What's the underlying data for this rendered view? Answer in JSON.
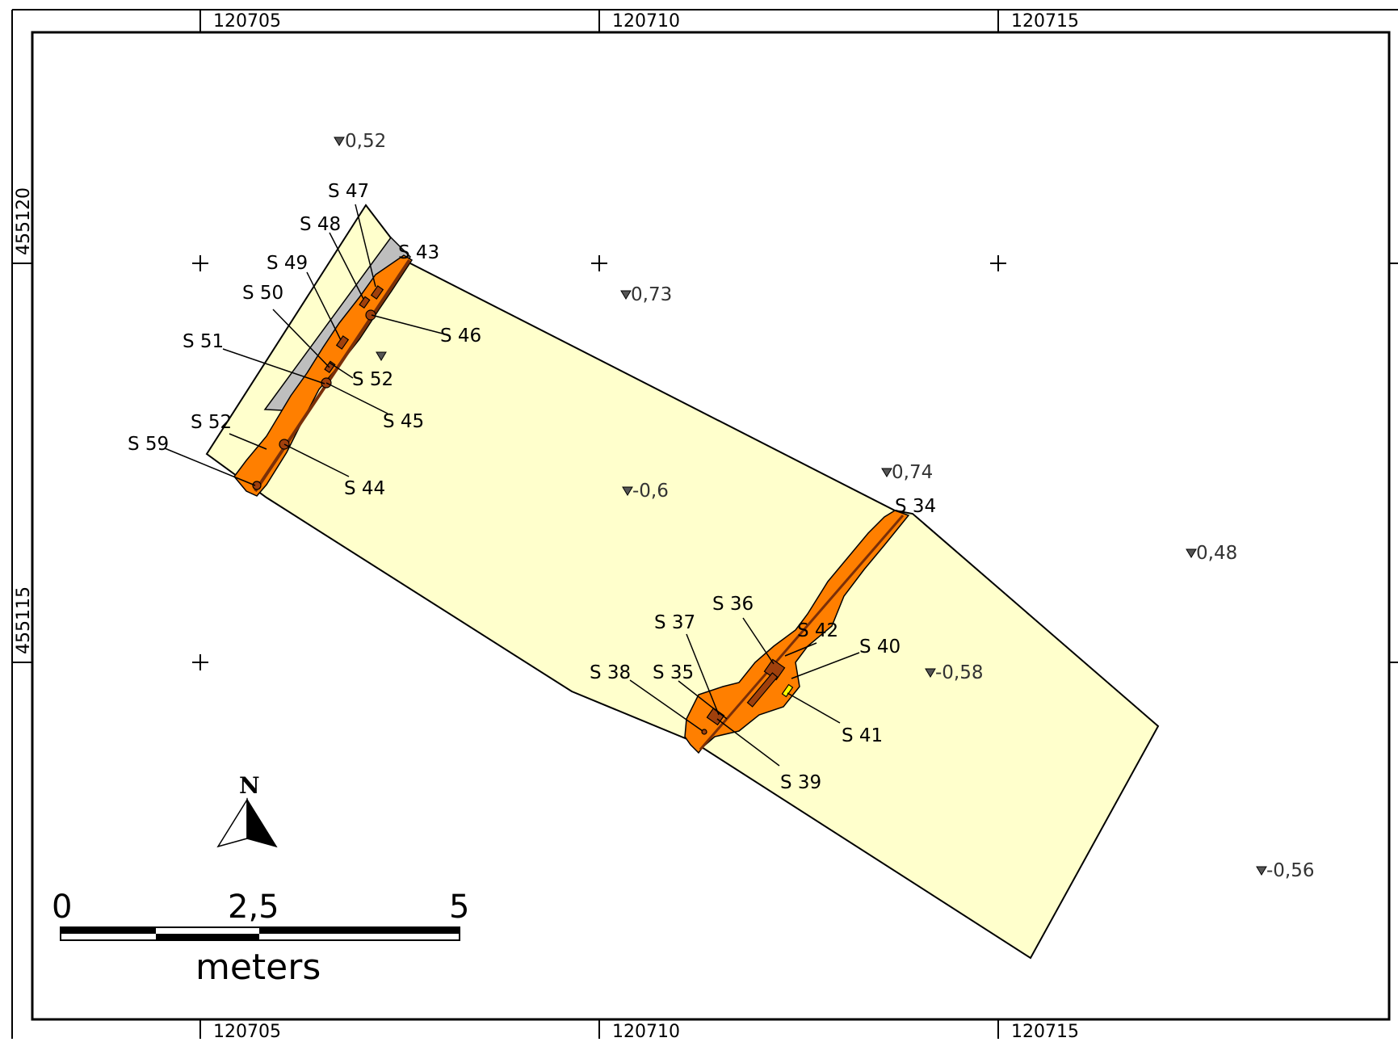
{
  "map": {
    "grid": {
      "x_labels": [
        "120705",
        "120710",
        "120715"
      ],
      "y_labels": [
        "455120",
        "455115"
      ]
    },
    "features": [
      {
        "id": "s43",
        "label": "S 43"
      },
      {
        "id": "s47",
        "label": "S 47"
      },
      {
        "id": "s48",
        "label": "S 48"
      },
      {
        "id": "s49",
        "label": "S 49"
      },
      {
        "id": "s50",
        "label": "S 50"
      },
      {
        "id": "s51",
        "label": "S 51"
      },
      {
        "id": "s46",
        "label": "S 46"
      },
      {
        "id": "s52a",
        "label": "S 52"
      },
      {
        "id": "s45",
        "label": "S 45"
      },
      {
        "id": "s52b",
        "label": "S 52"
      },
      {
        "id": "s59",
        "label": "S 59"
      },
      {
        "id": "s44",
        "label": "S 44"
      },
      {
        "id": "s34",
        "label": "S 34"
      },
      {
        "id": "s36",
        "label": "S 36"
      },
      {
        "id": "s37",
        "label": "S 37"
      },
      {
        "id": "s42",
        "label": "S 42"
      },
      {
        "id": "s40",
        "label": "S 40"
      },
      {
        "id": "s38",
        "label": "S 38"
      },
      {
        "id": "s35",
        "label": "S 35"
      },
      {
        "id": "s41",
        "label": "S 41"
      },
      {
        "id": "s39",
        "label": "S 39"
      }
    ],
    "levels": [
      {
        "id": "lvl-052",
        "label": "0,52"
      },
      {
        "id": "lvl-073",
        "label": "0,73"
      },
      {
        "id": "lvl-blank",
        "label": ""
      },
      {
        "id": "lvl-074",
        "label": "0,74"
      },
      {
        "id": "lvl-m06",
        "label": "-0,6"
      },
      {
        "id": "lvl-048",
        "label": "0,48"
      },
      {
        "id": "lvl-m058",
        "label": "-0,58"
      },
      {
        "id": "lvl-m056",
        "label": "-0,56"
      }
    ],
    "north_arrow": {
      "label": "N"
    },
    "scale_bar": {
      "ticks": [
        "0",
        "2,5",
        "5"
      ],
      "unit": "meters"
    },
    "colors": {
      "trench_fill": "#ffffcc",
      "ditch_fill": "#ff7f00",
      "feature_fill": "#a0400c",
      "disturbed_fill": "#bebebe",
      "outline": "#000000"
    }
  }
}
